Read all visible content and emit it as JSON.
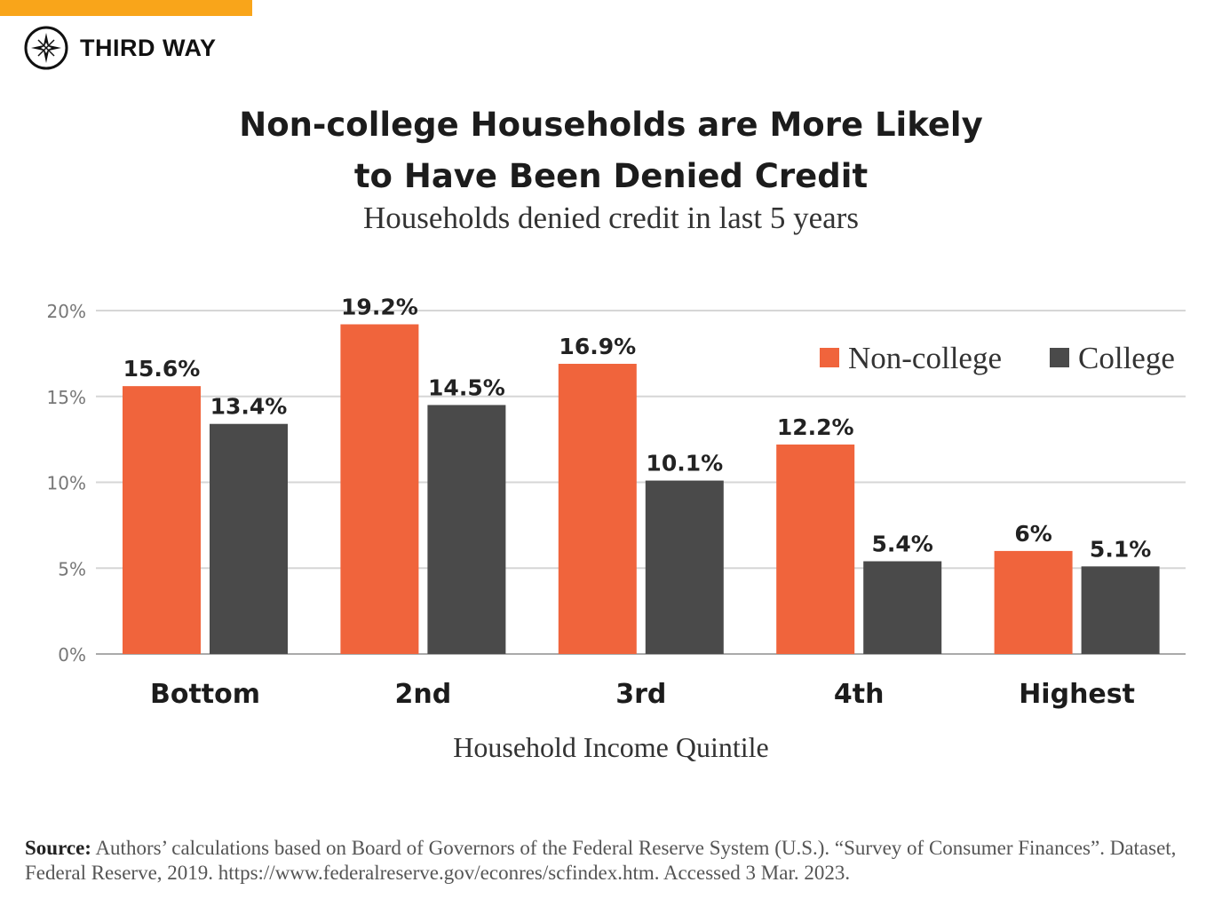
{
  "brand": {
    "name": "THIRD WAY",
    "logo_icon": "compass-star-icon",
    "accent_color": "#f9a51a"
  },
  "chart_data": {
    "type": "bar",
    "title_line1": "Non-college Households are More Likely",
    "title_line2": "to Have Been Denied Credit",
    "subtitle": "Households denied credit in last 5 years",
    "xlabel": "Household Income Quintile",
    "ylabel": "",
    "categories": [
      "Bottom",
      "2nd",
      "3rd",
      "4th",
      "Highest"
    ],
    "series": [
      {
        "name": "Non-college",
        "color": "#f0643c",
        "values": [
          15.6,
          19.2,
          16.9,
          12.2,
          6
        ],
        "labels": [
          "15.6%",
          "19.2%",
          "16.9%",
          "12.2%",
          "6%"
        ]
      },
      {
        "name": "College",
        "color": "#4a4a4a",
        "values": [
          13.4,
          14.5,
          10.1,
          5.4,
          5.1
        ],
        "labels": [
          "13.4%",
          "14.5%",
          "10.1%",
          "5.4%",
          "5.1%"
        ]
      }
    ],
    "ylim": [
      0,
      20
    ],
    "yticks": [
      0,
      5,
      10,
      15,
      20
    ],
    "ytick_labels": [
      "0%",
      "5%",
      "10%",
      "15%",
      "20%"
    ],
    "grid": true,
    "legend_position": "top-right"
  },
  "source": {
    "label": "Source:",
    "text": "Authors’ calculations based on Board of Governors of the Federal Reserve System (U.S.). “Survey of Consumer Finances”. Dataset, Federal Reserve, 2019. https://www.federalreserve.gov/econres/scfindex.htm. Accessed 3 Mar. 2023."
  }
}
